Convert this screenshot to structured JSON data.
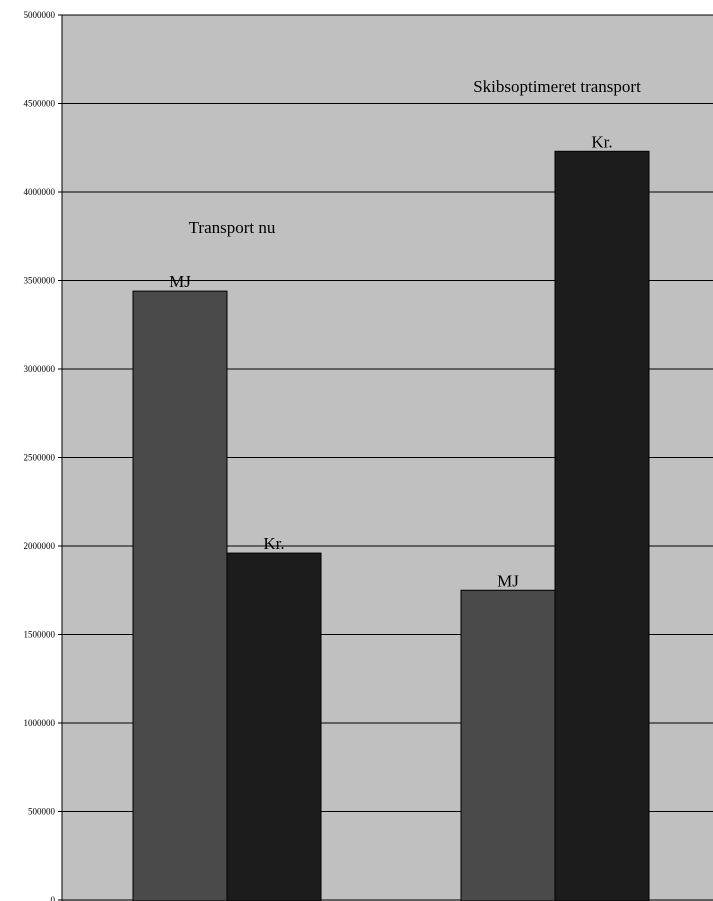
{
  "chart_data": {
    "type": "bar",
    "categories": [
      "Transport nu",
      "Skibsoptimeret transport"
    ],
    "series": [
      {
        "name": "MJ",
        "values": [
          3440000,
          1750000
        ]
      },
      {
        "name": "Kr.",
        "values": [
          1960000,
          4230000
        ]
      }
    ],
    "ylim": [
      0,
      5000000
    ],
    "yticks": [
      0,
      500000,
      1000000,
      1500000,
      2000000,
      2500000,
      3000000,
      3500000,
      4000000,
      4500000,
      5000000
    ],
    "ytick_labels": [
      "0",
      "500000",
      "1000000",
      "1500000",
      "2000000",
      "2500000",
      "3000000",
      "3500000",
      "4000000",
      "4500000",
      "5000000"
    ],
    "grid": true,
    "legend": "none",
    "colors": {
      "plot_background": "#c0c0c0",
      "gridline": "#000000",
      "series": [
        "#4a4a4a",
        "#1c1c1c"
      ]
    }
  }
}
